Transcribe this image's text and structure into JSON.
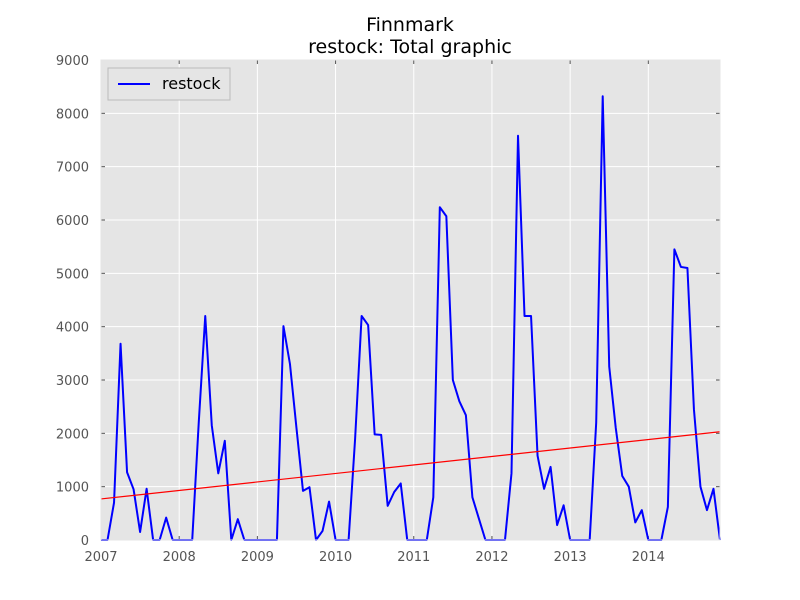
{
  "chart_data": {
    "type": "line",
    "title": "Finnmark",
    "subtitle": "restock: Total graphic",
    "xlabel": "",
    "ylabel": "",
    "xlim": [
      2007.0,
      2014.9167
    ],
    "ylim": [
      0,
      9000
    ],
    "xticks": [
      "2007",
      "2008",
      "2009",
      "2010",
      "2011",
      "2012",
      "2013",
      "2014"
    ],
    "yticks": [
      "0",
      "1000",
      "2000",
      "3000",
      "4000",
      "5000",
      "6000",
      "7000",
      "8000",
      "9000"
    ],
    "grid": true,
    "legend_position": "top-left",
    "series": [
      {
        "name": "restock",
        "color": "#0000ff",
        "start": "2007-01",
        "step": "month",
        "values": [
          0,
          0,
          700,
          3680,
          1270,
          950,
          150,
          960,
          0,
          0,
          420,
          0,
          0,
          0,
          0,
          2200,
          4200,
          2150,
          1250,
          1860,
          0,
          390,
          0,
          0,
          0,
          0,
          0,
          0,
          4010,
          3300,
          2100,
          920,
          990,
          0,
          170,
          720,
          0,
          0,
          0,
          1900,
          4200,
          4030,
          1980,
          1970,
          640,
          900,
          1060,
          0,
          0,
          0,
          0,
          800,
          6240,
          6070,
          3000,
          2600,
          2340,
          800,
          400,
          0,
          0,
          0,
          0,
          1250,
          7580,
          4200,
          4200,
          1580,
          960,
          1370,
          280,
          650,
          0,
          0,
          0,
          0,
          2200,
          8320,
          3250,
          2100,
          1200,
          1000,
          330,
          560,
          0,
          0,
          0,
          620,
          5450,
          5120,
          5100,
          2450,
          1000,
          560,
          960,
          0
        ]
      },
      {
        "name": "",
        "color": "#ff0000",
        "kind": "trend",
        "x": [
          2007.0,
          2014.9167
        ],
        "values": [
          770,
          2030
        ]
      }
    ],
    "plot_background": "#e5e5e5",
    "grid_color": "#ffffff"
  }
}
